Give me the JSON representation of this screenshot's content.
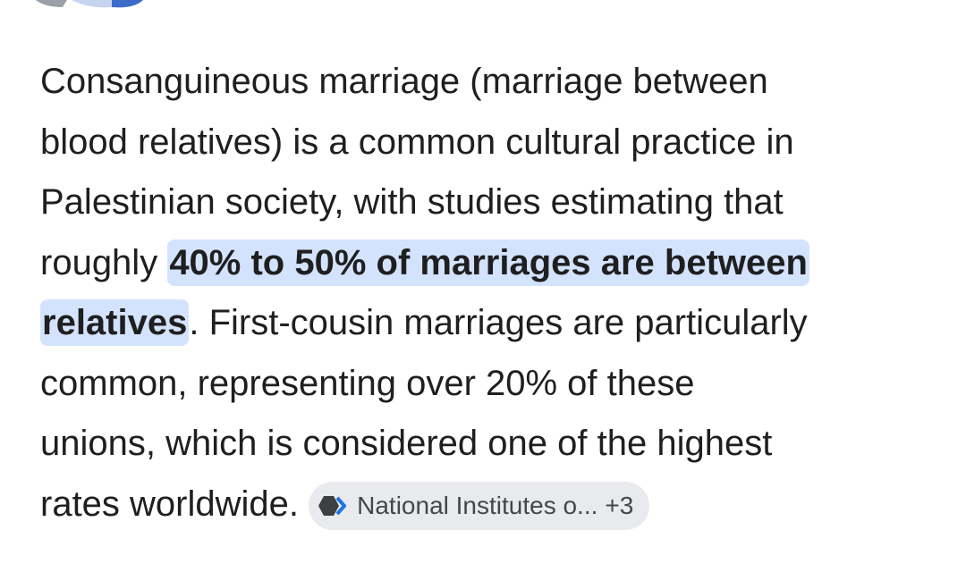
{
  "paragraph": {
    "lines": [
      [
        {
          "text": "Consanguineous marriage (marriage between"
        }
      ],
      [
        {
          "text": "blood relatives) is a common cultural practice in"
        }
      ],
      [
        {
          "text": "Palestinian society, with studies estimating that"
        }
      ],
      [
        {
          "text": "roughly "
        },
        {
          "text": "40% to 50% of marriages are between",
          "highlight": true
        }
      ],
      [
        {
          "text": "relatives",
          "highlight": true
        },
        {
          "text": ". First-cousin marriages are particularly"
        }
      ],
      [
        {
          "text": "common, representing over 20% of these"
        }
      ],
      [
        {
          "text": "unions, which is considered one of the highest"
        }
      ],
      [
        {
          "text": "rates worldwide. "
        }
      ]
    ]
  },
  "source_chip": {
    "label": "National Institutes o...",
    "count": "+3"
  }
}
